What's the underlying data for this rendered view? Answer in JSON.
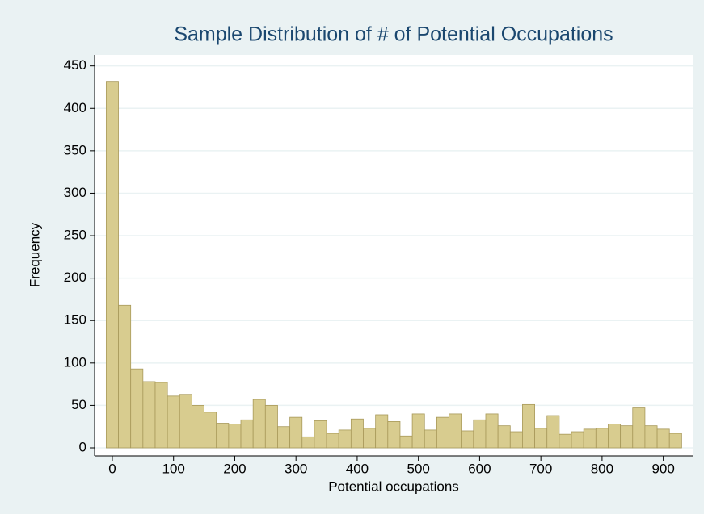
{
  "chart_data": {
    "type": "histogram",
    "title": "Sample Distribution of # of Potential Occupations",
    "x_label": "Potential occupations",
    "y_label": "Frequency",
    "bins": [
      -10,
      10,
      30,
      50,
      70,
      90,
      110,
      130,
      150,
      170,
      190,
      210,
      230,
      250,
      270,
      290,
      310,
      330,
      350,
      370,
      390,
      410,
      430,
      450,
      470,
      490,
      510,
      530,
      550,
      570,
      590,
      610,
      630,
      650,
      670,
      690,
      710,
      730,
      750,
      770,
      790,
      810,
      830,
      850,
      870,
      890,
      910,
      930
    ],
    "values": [
      431,
      168,
      93,
      78,
      77,
      61,
      63,
      50,
      42,
      29,
      28,
      33,
      57,
      50,
      25,
      36,
      13,
      32,
      17,
      21,
      34,
      23,
      39,
      31,
      14,
      40,
      21,
      36,
      40,
      20,
      33,
      40,
      26,
      19,
      51,
      23,
      38,
      16,
      19,
      22,
      23,
      28,
      26,
      47,
      26,
      22,
      17
    ],
    "color": "#d8cc8f",
    "edge_color": "#a8995a",
    "xlim": [
      -29,
      948
    ],
    "ylim": [
      -9.5,
      463
    ],
    "xticks": [
      0,
      100,
      200,
      300,
      400,
      500,
      600,
      700,
      800,
      900
    ],
    "yticks": [
      0,
      50,
      100,
      150,
      200,
      250,
      300,
      350,
      400,
      450
    ],
    "grid": true
  }
}
